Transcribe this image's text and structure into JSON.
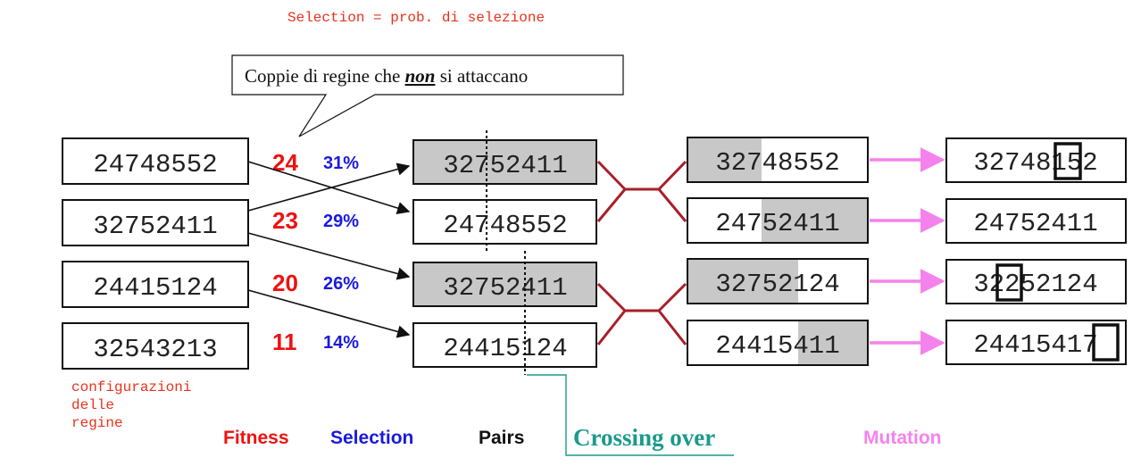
{
  "header_note": "Selection = prob. di selezione",
  "callout": {
    "prefix": "Coppie di regine che ",
    "emph": "non",
    "suffix": " si attaccano"
  },
  "population": [
    "24748552",
    "32752411",
    "24415124",
    "32543213"
  ],
  "fitness": [
    "24",
    "23",
    "20",
    "11"
  ],
  "selection": [
    "31%",
    "29%",
    "26%",
    "14%"
  ],
  "population_note": [
    "configurazioni",
    "delle",
    "regine"
  ],
  "pairs": [
    "32752411",
    "24748552",
    "32752411",
    "24415124"
  ],
  "crossover_points": [
    3,
    5
  ],
  "children": [
    "32748552",
    "24752411",
    "32752124",
    "24415411"
  ],
  "mutated": [
    "32748152",
    "24752411",
    "32252124",
    "24415417"
  ],
  "mutation_positions": [
    5,
    null,
    2,
    7
  ],
  "footer": {
    "fitness": "Fitness",
    "selection": "Selection",
    "pairs": "Pairs",
    "crossing": "Crossing over",
    "mutation": "Mutation"
  },
  "colors": {
    "fitness": "#ee1111",
    "selection": "#1a1add",
    "note": "#e8321e",
    "cross_lines": "#a81f2a",
    "crossing_label": "#1a9a8c",
    "mutation": "#f582ec",
    "shade": "#c8c8c8"
  }
}
